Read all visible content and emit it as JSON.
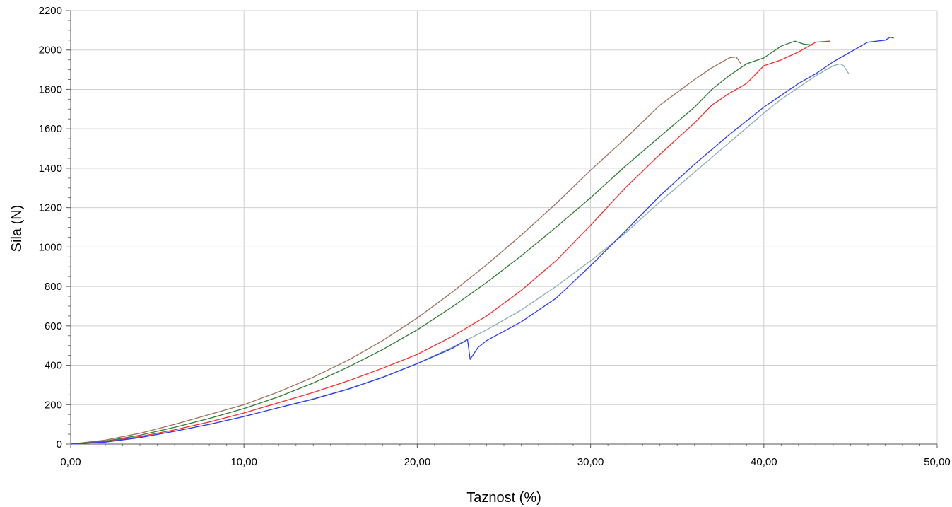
{
  "chart_data": {
    "type": "line",
    "title": "",
    "xlabel": "Taznost (%)",
    "ylabel": "Sila (N)",
    "xlim": [
      0,
      50
    ],
    "ylim": [
      0,
      2200
    ],
    "x_ticks": [
      "0,00",
      "10,00",
      "20,00",
      "30,00",
      "40,00",
      "50,00"
    ],
    "y_ticks": [
      "0",
      "200",
      "400",
      "600",
      "800",
      "1000",
      "1200",
      "1400",
      "1600",
      "1800",
      "2000",
      "2200"
    ],
    "grid": true,
    "legend": "none",
    "series": [
      {
        "color": "#a0705a",
        "points": [
          [
            0,
            0
          ],
          [
            2,
            20
          ],
          [
            4,
            55
          ],
          [
            6,
            100
          ],
          [
            8,
            150
          ],
          [
            10,
            200
          ],
          [
            12,
            265
          ],
          [
            14,
            340
          ],
          [
            16,
            425
          ],
          [
            18,
            525
          ],
          [
            20,
            640
          ],
          [
            22,
            770
          ],
          [
            24,
            910
          ],
          [
            26,
            1060
          ],
          [
            28,
            1220
          ],
          [
            30,
            1390
          ],
          [
            32,
            1550
          ],
          [
            34,
            1720
          ],
          [
            36,
            1850
          ],
          [
            37,
            1910
          ],
          [
            38,
            1960
          ],
          [
            38.4,
            1965
          ],
          [
            38.6,
            1940
          ],
          [
            38.7,
            1925
          ]
        ]
      },
      {
        "color": "#2e7d32",
        "points": [
          [
            0,
            0
          ],
          [
            2,
            15
          ],
          [
            4,
            45
          ],
          [
            6,
            85
          ],
          [
            8,
            130
          ],
          [
            10,
            180
          ],
          [
            12,
            240
          ],
          [
            14,
            310
          ],
          [
            16,
            390
          ],
          [
            18,
            480
          ],
          [
            20,
            580
          ],
          [
            22,
            695
          ],
          [
            24,
            820
          ],
          [
            26,
            955
          ],
          [
            28,
            1100
          ],
          [
            30,
            1250
          ],
          [
            32,
            1410
          ],
          [
            34,
            1560
          ],
          [
            36,
            1710
          ],
          [
            37,
            1800
          ],
          [
            38,
            1870
          ],
          [
            39,
            1930
          ],
          [
            40,
            1960
          ],
          [
            41,
            2020
          ],
          [
            41.8,
            2045
          ],
          [
            42.3,
            2030
          ],
          [
            42.8,
            2025
          ]
        ]
      },
      {
        "color": "#ff2a2a",
        "points": [
          [
            0,
            0
          ],
          [
            2,
            12
          ],
          [
            4,
            38
          ],
          [
            6,
            72
          ],
          [
            8,
            112
          ],
          [
            10,
            158
          ],
          [
            12,
            210
          ],
          [
            14,
            262
          ],
          [
            16,
            320
          ],
          [
            18,
            385
          ],
          [
            20,
            455
          ],
          [
            22,
            545
          ],
          [
            24,
            650
          ],
          [
            26,
            780
          ],
          [
            28,
            930
          ],
          [
            30,
            1110
          ],
          [
            32,
            1300
          ],
          [
            34,
            1470
          ],
          [
            36,
            1630
          ],
          [
            37,
            1720
          ],
          [
            38,
            1780
          ],
          [
            39,
            1830
          ],
          [
            40,
            1920
          ],
          [
            41,
            1950
          ],
          [
            42,
            1990
          ],
          [
            43,
            2040
          ],
          [
            43.8,
            2045
          ]
        ]
      },
      {
        "color": "#8aaeb4",
        "points": [
          [
            0,
            0
          ],
          [
            2,
            10
          ],
          [
            4,
            33
          ],
          [
            6,
            65
          ],
          [
            8,
            100
          ],
          [
            10,
            140
          ],
          [
            12,
            185
          ],
          [
            14,
            230
          ],
          [
            16,
            280
          ],
          [
            18,
            340
          ],
          [
            20,
            410
          ],
          [
            22,
            490
          ],
          [
            24,
            580
          ],
          [
            26,
            680
          ],
          [
            28,
            800
          ],
          [
            30,
            930
          ],
          [
            32,
            1070
          ],
          [
            34,
            1230
          ],
          [
            36,
            1380
          ],
          [
            38,
            1530
          ],
          [
            40,
            1680
          ],
          [
            41,
            1750
          ],
          [
            42,
            1810
          ],
          [
            43,
            1870
          ],
          [
            44,
            1920
          ],
          [
            44.4,
            1930
          ],
          [
            44.6,
            1920
          ],
          [
            44.9,
            1880
          ]
        ]
      },
      {
        "color": "#2a3bff",
        "points": [
          [
            0,
            0
          ],
          [
            2,
            10
          ],
          [
            4,
            33
          ],
          [
            6,
            65
          ],
          [
            8,
            100
          ],
          [
            10,
            140
          ],
          [
            12,
            185
          ],
          [
            14,
            228
          ],
          [
            16,
            278
          ],
          [
            18,
            338
          ],
          [
            20,
            408
          ],
          [
            22,
            485
          ],
          [
            22.9,
            530
          ],
          [
            23.05,
            430
          ],
          [
            23.5,
            490
          ],
          [
            24,
            525
          ],
          [
            26,
            620
          ],
          [
            28,
            740
          ],
          [
            30,
            905
          ],
          [
            32,
            1080
          ],
          [
            34,
            1260
          ],
          [
            36,
            1420
          ],
          [
            38,
            1570
          ],
          [
            40,
            1710
          ],
          [
            41,
            1770
          ],
          [
            42,
            1830
          ],
          [
            43,
            1880
          ],
          [
            44,
            1940
          ],
          [
            45,
            1990
          ],
          [
            46,
            2040
          ],
          [
            47,
            2050
          ],
          [
            47.3,
            2065
          ],
          [
            47.5,
            2060
          ]
        ]
      }
    ]
  }
}
